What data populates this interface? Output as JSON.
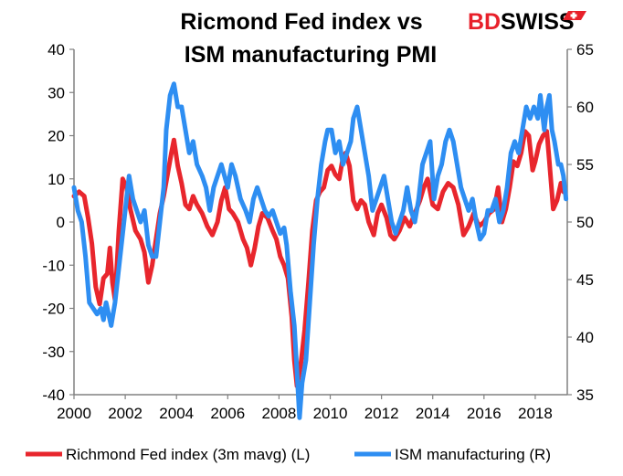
{
  "chart_data": {
    "type": "line",
    "title": "Ricmond Fed index vs",
    "subtitle": "ISM manufacturing PMI",
    "brand": {
      "text_bd": "BD",
      "text_swiss": "SWISS",
      "logo_color": "#e8202a"
    },
    "x_ticks": [
      "2000",
      "2002",
      "2004",
      "2006",
      "2008",
      "2010",
      "2012",
      "2014",
      "2016",
      "2018"
    ],
    "xlim": [
      2000,
      2019.25
    ],
    "y_left": {
      "ticks": [
        "40",
        "30",
        "20",
        "10",
        "0",
        "-10",
        "-20",
        "-30",
        "-40"
      ],
      "lim": [
        -40,
        40
      ]
    },
    "y_right": {
      "ticks": [
        "65",
        "60",
        "55",
        "50",
        "45",
        "40",
        "35"
      ],
      "lim": [
        35,
        65
      ]
    },
    "grid": false,
    "legend_position": "bottom",
    "series": [
      {
        "name": "Richmond Fed index (3m mavg) (L)",
        "axis": "left",
        "color": "#e8262d",
        "points": [
          [
            2000.0,
            6
          ],
          [
            2000.2,
            7
          ],
          [
            2000.4,
            6
          ],
          [
            2000.55,
            1
          ],
          [
            2000.7,
            -5
          ],
          [
            2000.85,
            -15
          ],
          [
            2001.0,
            -19
          ],
          [
            2001.15,
            -13
          ],
          [
            2001.3,
            -12
          ],
          [
            2001.4,
            -6
          ],
          [
            2001.5,
            -14
          ],
          [
            2001.6,
            -18
          ],
          [
            2001.75,
            -2
          ],
          [
            2001.9,
            10
          ],
          [
            2002.05,
            8
          ],
          [
            2002.2,
            3
          ],
          [
            2002.4,
            -2
          ],
          [
            2002.6,
            -4
          ],
          [
            2002.75,
            -7
          ],
          [
            2002.9,
            -14
          ],
          [
            2003.05,
            -10
          ],
          [
            2003.2,
            -4
          ],
          [
            2003.35,
            2
          ],
          [
            2003.5,
            6
          ],
          [
            2003.65,
            11
          ],
          [
            2003.8,
            16
          ],
          [
            2003.9,
            19
          ],
          [
            2004.05,
            13
          ],
          [
            2004.2,
            9
          ],
          [
            2004.35,
            4
          ],
          [
            2004.5,
            3
          ],
          [
            2004.65,
            6
          ],
          [
            2004.8,
            4
          ],
          [
            2005.0,
            2
          ],
          [
            2005.2,
            -1
          ],
          [
            2005.4,
            -3
          ],
          [
            2005.6,
            0
          ],
          [
            2005.75,
            5
          ],
          [
            2005.9,
            8
          ],
          [
            2006.05,
            3
          ],
          [
            2006.2,
            2
          ],
          [
            2006.4,
            0
          ],
          [
            2006.6,
            -4
          ],
          [
            2006.75,
            -6
          ],
          [
            2006.9,
            -10
          ],
          [
            2007.05,
            -6
          ],
          [
            2007.2,
            -1
          ],
          [
            2007.35,
            2
          ],
          [
            2007.55,
            1
          ],
          [
            2007.75,
            -2
          ],
          [
            2007.9,
            -4
          ],
          [
            2008.05,
            -8
          ],
          [
            2008.2,
            -10
          ],
          [
            2008.35,
            -13
          ],
          [
            2008.5,
            -22
          ],
          [
            2008.6,
            -32
          ],
          [
            2008.7,
            -38
          ],
          [
            2008.85,
            -33
          ],
          [
            2009.0,
            -25
          ],
          [
            2009.15,
            -14
          ],
          [
            2009.3,
            -2
          ],
          [
            2009.45,
            5
          ],
          [
            2009.6,
            7
          ],
          [
            2009.75,
            8
          ],
          [
            2009.9,
            12
          ],
          [
            2010.05,
            13
          ],
          [
            2010.2,
            11
          ],
          [
            2010.35,
            10
          ],
          [
            2010.5,
            15
          ],
          [
            2010.6,
            16
          ],
          [
            2010.75,
            13
          ],
          [
            2010.9,
            5
          ],
          [
            2011.05,
            3
          ],
          [
            2011.2,
            5
          ],
          [
            2011.35,
            4
          ],
          [
            2011.5,
            0
          ],
          [
            2011.7,
            -3
          ],
          [
            2011.85,
            2
          ],
          [
            2012.0,
            4
          ],
          [
            2012.2,
            1
          ],
          [
            2012.35,
            -3
          ],
          [
            2012.5,
            -4
          ],
          [
            2012.7,
            -2
          ],
          [
            2012.9,
            1
          ],
          [
            2013.1,
            -1
          ],
          [
            2013.3,
            2
          ],
          [
            2013.5,
            5
          ],
          [
            2013.65,
            8
          ],
          [
            2013.8,
            10
          ],
          [
            2014.0,
            4
          ],
          [
            2014.2,
            3
          ],
          [
            2014.4,
            7
          ],
          [
            2014.6,
            9
          ],
          [
            2014.8,
            8
          ],
          [
            2015.0,
            4
          ],
          [
            2015.2,
            -3
          ],
          [
            2015.4,
            -1
          ],
          [
            2015.6,
            2
          ],
          [
            2015.8,
            -1
          ],
          [
            2016.0,
            0
          ],
          [
            2016.2,
            2
          ],
          [
            2016.4,
            3
          ],
          [
            2016.55,
            8
          ],
          [
            2016.7,
            0
          ],
          [
            2016.85,
            3
          ],
          [
            2017.0,
            8
          ],
          [
            2017.15,
            14
          ],
          [
            2017.3,
            13
          ],
          [
            2017.45,
            16
          ],
          [
            2017.6,
            21
          ],
          [
            2017.75,
            20
          ],
          [
            2017.9,
            12
          ],
          [
            2018.0,
            14
          ],
          [
            2018.15,
            18
          ],
          [
            2018.3,
            20
          ],
          [
            2018.45,
            21
          ],
          [
            2018.55,
            14
          ],
          [
            2018.7,
            3
          ],
          [
            2018.85,
            5
          ],
          [
            2019.0,
            9
          ],
          [
            2019.1,
            7
          ]
        ]
      },
      {
        "name": "ISM manufacturing (R)",
        "axis": "right",
        "color": "#2e8ef2",
        "points": [
          [
            2000.0,
            53
          ],
          [
            2000.15,
            51
          ],
          [
            2000.3,
            50
          ],
          [
            2000.45,
            47
          ],
          [
            2000.6,
            43
          ],
          [
            2000.75,
            42.5
          ],
          [
            2000.9,
            42
          ],
          [
            2001.05,
            42.5
          ],
          [
            2001.15,
            41.5
          ],
          [
            2001.25,
            43
          ],
          [
            2001.35,
            42
          ],
          [
            2001.45,
            41
          ],
          [
            2001.6,
            43
          ],
          [
            2001.75,
            46
          ],
          [
            2001.9,
            49
          ],
          [
            2002.0,
            51
          ],
          [
            2002.15,
            54
          ],
          [
            2002.3,
            52
          ],
          [
            2002.45,
            51
          ],
          [
            2002.6,
            50
          ],
          [
            2002.75,
            51
          ],
          [
            2002.9,
            48
          ],
          [
            2003.05,
            47
          ],
          [
            2003.2,
            47
          ],
          [
            2003.35,
            50
          ],
          [
            2003.5,
            53
          ],
          [
            2003.6,
            58
          ],
          [
            2003.75,
            61
          ],
          [
            2003.9,
            62
          ],
          [
            2004.05,
            60
          ],
          [
            2004.2,
            60
          ],
          [
            2004.35,
            58
          ],
          [
            2004.5,
            56
          ],
          [
            2004.65,
            57
          ],
          [
            2004.8,
            55
          ],
          [
            2005.0,
            54
          ],
          [
            2005.15,
            53
          ],
          [
            2005.3,
            51
          ],
          [
            2005.45,
            53
          ],
          [
            2005.6,
            54
          ],
          [
            2005.75,
            55
          ],
          [
            2006.0,
            53
          ],
          [
            2006.15,
            55
          ],
          [
            2006.3,
            54
          ],
          [
            2006.5,
            52
          ],
          [
            2006.7,
            51
          ],
          [
            2006.85,
            50
          ],
          [
            2007.0,
            52
          ],
          [
            2007.15,
            53
          ],
          [
            2007.3,
            52
          ],
          [
            2007.45,
            51
          ],
          [
            2007.6,
            50.5
          ],
          [
            2007.75,
            51
          ],
          [
            2007.9,
            50
          ],
          [
            2008.05,
            49
          ],
          [
            2008.2,
            49.5
          ],
          [
            2008.3,
            48
          ],
          [
            2008.45,
            44
          ],
          [
            2008.6,
            41
          ],
          [
            2008.7,
            37
          ],
          [
            2008.8,
            33
          ],
          [
            2008.9,
            36
          ],
          [
            2009.05,
            38
          ],
          [
            2009.2,
            43
          ],
          [
            2009.35,
            48
          ],
          [
            2009.5,
            52
          ],
          [
            2009.65,
            55
          ],
          [
            2009.8,
            57
          ],
          [
            2009.9,
            58
          ],
          [
            2010.05,
            58
          ],
          [
            2010.2,
            56
          ],
          [
            2010.35,
            57
          ],
          [
            2010.5,
            55
          ],
          [
            2010.65,
            56
          ],
          [
            2010.8,
            57
          ],
          [
            2010.9,
            59
          ],
          [
            2011.05,
            60
          ],
          [
            2011.2,
            58
          ],
          [
            2011.35,
            56
          ],
          [
            2011.5,
            54
          ],
          [
            2011.65,
            51
          ],
          [
            2011.8,
            52
          ],
          [
            2011.95,
            53
          ],
          [
            2012.1,
            54
          ],
          [
            2012.25,
            52
          ],
          [
            2012.4,
            50
          ],
          [
            2012.55,
            49
          ],
          [
            2012.7,
            50
          ],
          [
            2012.85,
            51
          ],
          [
            2013.0,
            53
          ],
          [
            2013.15,
            51
          ],
          [
            2013.3,
            50
          ],
          [
            2013.45,
            52
          ],
          [
            2013.6,
            55
          ],
          [
            2013.75,
            56
          ],
          [
            2013.9,
            57
          ],
          [
            2014.05,
            52
          ],
          [
            2014.2,
            54
          ],
          [
            2014.35,
            55
          ],
          [
            2014.5,
            57
          ],
          [
            2014.65,
            58
          ],
          [
            2014.8,
            57
          ],
          [
            2014.95,
            55
          ],
          [
            2015.1,
            53
          ],
          [
            2015.25,
            52
          ],
          [
            2015.4,
            51
          ],
          [
            2015.55,
            52
          ],
          [
            2015.7,
            50
          ],
          [
            2015.85,
            48.5
          ],
          [
            2016.0,
            49
          ],
          [
            2016.15,
            51
          ],
          [
            2016.3,
            51
          ],
          [
            2016.45,
            52
          ],
          [
            2016.6,
            50
          ],
          [
            2016.75,
            51
          ],
          [
            2016.9,
            53
          ],
          [
            2017.05,
            56
          ],
          [
            2017.2,
            57
          ],
          [
            2017.35,
            56
          ],
          [
            2017.5,
            58
          ],
          [
            2017.65,
            60
          ],
          [
            2017.8,
            59
          ],
          [
            2017.95,
            60
          ],
          [
            2018.1,
            59
          ],
          [
            2018.2,
            61
          ],
          [
            2018.35,
            58
          ],
          [
            2018.45,
            60
          ],
          [
            2018.55,
            61
          ],
          [
            2018.65,
            58
          ],
          [
            2018.75,
            57
          ],
          [
            2018.9,
            55
          ],
          [
            2019.0,
            55
          ],
          [
            2019.1,
            54
          ],
          [
            2019.2,
            52
          ]
        ]
      }
    ]
  }
}
